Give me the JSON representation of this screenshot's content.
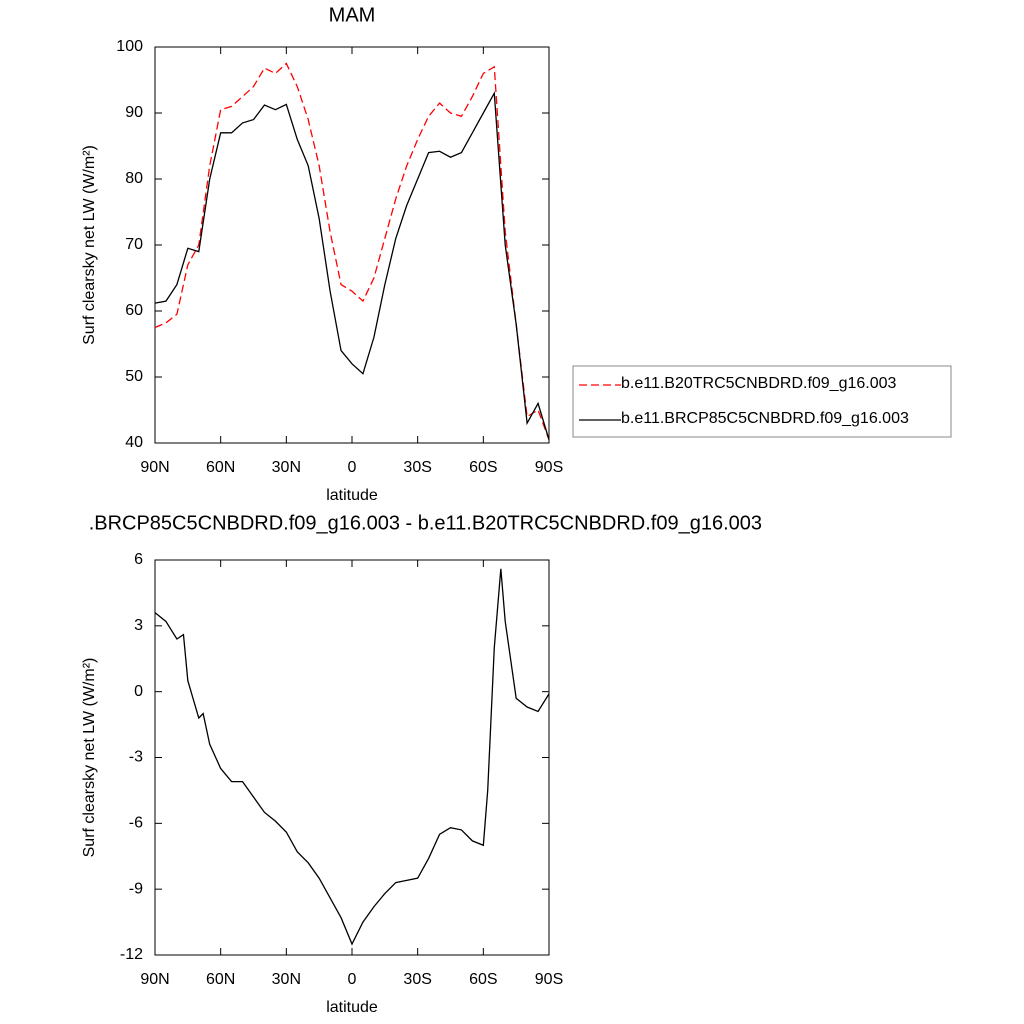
{
  "chart_data": [
    {
      "type": "line",
      "title": "MAM",
      "ylabel": "Surf clearsky net LW (W/m²)",
      "xlabel": "latitude",
      "x": [
        90,
        85,
        80,
        75,
        70,
        65,
        60,
        55,
        50,
        45,
        40,
        35,
        30,
        25,
        20,
        15,
        10,
        5,
        0,
        -5,
        -10,
        -15,
        -20,
        -25,
        -30,
        -35,
        -40,
        -45,
        -50,
        -55,
        -60,
        -65,
        -70,
        -75,
        -80,
        -85,
        -90
      ],
      "series": [
        {
          "name": "b.e11.B20TRC5CNBDRD.f09_g16.003",
          "color": "#ff0000",
          "dashed": true,
          "values": [
            57.5,
            58.2,
            59.5,
            67,
            70,
            82,
            90.5,
            91,
            92.5,
            94,
            96.8,
            96,
            97.5,
            94,
            89,
            82,
            72,
            64,
            63,
            61.5,
            65,
            71,
            77,
            82,
            86,
            89.5,
            91.5,
            90,
            89.5,
            92.5,
            96,
            97,
            72,
            58,
            44,
            45,
            40.5
          ]
        },
        {
          "name": "b.e11.BRCP85C5CNBDRD.f09_g16.003",
          "color": "#000000",
          "dashed": false,
          "values": [
            61.2,
            61.5,
            64,
            69.5,
            69,
            80,
            87,
            87,
            88.5,
            89,
            91.2,
            90.5,
            91.3,
            86,
            82,
            74,
            63,
            54,
            52,
            50.5,
            56,
            64,
            71,
            76,
            80,
            84,
            84.2,
            83.3,
            84,
            87,
            90,
            93,
            70,
            58,
            43,
            46,
            40.5
          ]
        }
      ],
      "xlim": [
        90,
        -90
      ],
      "xticks": [
        {
          "value": 90,
          "label": "90N"
        },
        {
          "value": 60,
          "label": "60N"
        },
        {
          "value": 30,
          "label": "30N"
        },
        0,
        {
          "value": -30,
          "label": "30S"
        },
        {
          "value": -60,
          "label": "60S"
        },
        {
          "value": -90,
          "label": "90S"
        }
      ],
      "ylim": [
        40,
        100
      ],
      "yticks": [
        40,
        50,
        60,
        70,
        80,
        90,
        100
      ]
    },
    {
      "type": "line",
      "title": ".BRCP85C5CNBDRD.f09_g16.003 - b.e11.B20TRC5CNBDRD.f09_g16.003",
      "ylabel": "Surf clearsky net LW (W/m²)",
      "xlabel": "latitude",
      "x": [
        90,
        85,
        80,
        77,
        75,
        70,
        68,
        65,
        60,
        55,
        50,
        45,
        40,
        35,
        30,
        25,
        20,
        15,
        10,
        5,
        0,
        -5,
        -10,
        -15,
        -20,
        -25,
        -30,
        -35,
        -40,
        -45,
        -50,
        -55,
        -60,
        -62,
        -65,
        -68,
        -70,
        -75,
        -80,
        -85,
        -90
      ],
      "series": [
        {
          "color": "#000000",
          "dashed": false,
          "values": [
            3.6,
            3.2,
            2.4,
            2.6,
            0.5,
            -1.2,
            -1,
            -2.4,
            -3.5,
            -4.1,
            -4.1,
            -4.8,
            -5.5,
            -5.9,
            -6.4,
            -7.3,
            -7.8,
            -8.5,
            -9.4,
            -10.3,
            -11.5,
            -10.5,
            -9.8,
            -9.2,
            -8.7,
            -8.6,
            -8.5,
            -7.6,
            -6.5,
            -6.2,
            -6.3,
            -6.8,
            -7,
            -4.5,
            2,
            5.6,
            3.2,
            -0.3,
            -0.7,
            -0.9,
            -0.1
          ]
        }
      ],
      "xlim": [
        90,
        -90
      ],
      "xticks": [
        {
          "value": 90,
          "label": "90N"
        },
        {
          "value": 60,
          "label": "60N"
        },
        {
          "value": 30,
          "label": "30N"
        },
        0,
        {
          "value": -30,
          "label": "30S"
        },
        {
          "value": -60,
          "label": "60S"
        },
        {
          "value": -90,
          "label": "90S"
        }
      ],
      "ylim": [
        -12,
        6
      ],
      "yticks": [
        -12,
        -9,
        -6,
        -3,
        0,
        3,
        6
      ]
    }
  ]
}
